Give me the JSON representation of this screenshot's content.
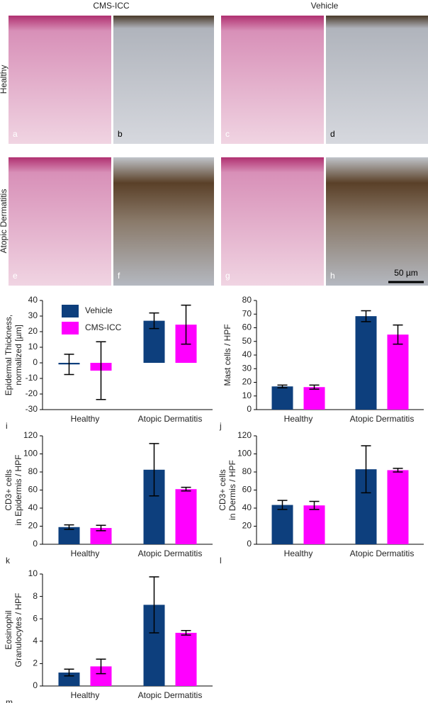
{
  "figure": {
    "column_titles": [
      "CMS-ICC",
      "Vehicle"
    ],
    "row_titles": [
      "Healthy",
      "Atopic Dermatitis"
    ],
    "panel_labels": [
      "a",
      "b",
      "c",
      "d",
      "e",
      "f",
      "g",
      "h"
    ],
    "scale_bar": "50 µm"
  },
  "chart_data": [
    {
      "type": "bar",
      "panel_label": "i",
      "y_label": [
        "Epidermal Thickness,",
        "normalized [µm]"
      ],
      "categories": [
        "Healthy",
        "Atopic Dermatitis"
      ],
      "series": [
        {
          "name": "Vehicle",
          "color": "#0d3f7d",
          "values": [
            -1,
            27
          ],
          "errors": [
            6.5,
            5
          ]
        },
        {
          "name": "CMS-ICC",
          "color": "#ff00ff",
          "values": [
            -5,
            24.5
          ],
          "errors": [
            18.5,
            12.5
          ]
        }
      ],
      "ylim": [
        -30,
        40
      ],
      "yticks": [
        -30,
        -20,
        -10,
        0,
        10,
        20,
        30,
        40
      ],
      "legend": "upper left"
    },
    {
      "type": "bar",
      "panel_label": "j",
      "y_label": [
        "Mast cells / HPF"
      ],
      "categories": [
        "Healthy",
        "Atopic Dermatitis"
      ],
      "series": [
        {
          "color": "#0d3f7d",
          "values": [
            17,
            68.5
          ],
          "errors": [
            1,
            4
          ]
        },
        {
          "color": "#ff00ff",
          "values": [
            16.5,
            55
          ],
          "errors": [
            1.5,
            7
          ]
        }
      ],
      "ylim": [
        0,
        80
      ],
      "yticks": [
        0,
        10,
        20,
        30,
        40,
        50,
        60,
        70,
        80
      ]
    },
    {
      "type": "bar",
      "panel_label": "k",
      "y_label": [
        "CD3+ cells",
        "in Epidermis / HPF"
      ],
      "categories": [
        "Healthy",
        "Atopic Dermatitis"
      ],
      "series": [
        {
          "color": "#0d3f7d",
          "values": [
            19,
            82.5
          ],
          "errors": [
            2.5,
            29
          ]
        },
        {
          "color": "#ff00ff",
          "values": [
            18,
            61
          ],
          "errors": [
            3,
            2
          ]
        }
      ],
      "ylim": [
        0,
        120
      ],
      "yticks": [
        0,
        20,
        40,
        60,
        80,
        100,
        120
      ]
    },
    {
      "type": "bar",
      "panel_label": "l",
      "y_label": [
        "CD3+ cells",
        "in Dermis / HPF"
      ],
      "categories": [
        "Healthy",
        "Atopic Dermatitis"
      ],
      "series": [
        {
          "color": "#0d3f7d",
          "values": [
            43.5,
            83
          ],
          "errors": [
            5,
            26
          ]
        },
        {
          "color": "#ff00ff",
          "values": [
            43,
            82
          ],
          "errors": [
            4.5,
            2
          ]
        }
      ],
      "ylim": [
        0,
        120
      ],
      "yticks": [
        0,
        20,
        40,
        60,
        80,
        100,
        120
      ]
    },
    {
      "type": "bar",
      "panel_label": "m",
      "y_label": [
        "Eosinophil",
        "Granulocytes / HPF"
      ],
      "categories": [
        "Healthy",
        "Atopic Dermatitis"
      ],
      "series": [
        {
          "color": "#0d3f7d",
          "values": [
            1.2,
            7.25
          ],
          "errors": [
            0.3,
            2.5
          ]
        },
        {
          "color": "#ff00ff",
          "values": [
            1.75,
            4.75
          ],
          "errors": [
            0.65,
            0.2
          ]
        }
      ],
      "ylim": [
        0,
        10
      ],
      "yticks": [
        0,
        2,
        4,
        6,
        8,
        10
      ]
    }
  ]
}
